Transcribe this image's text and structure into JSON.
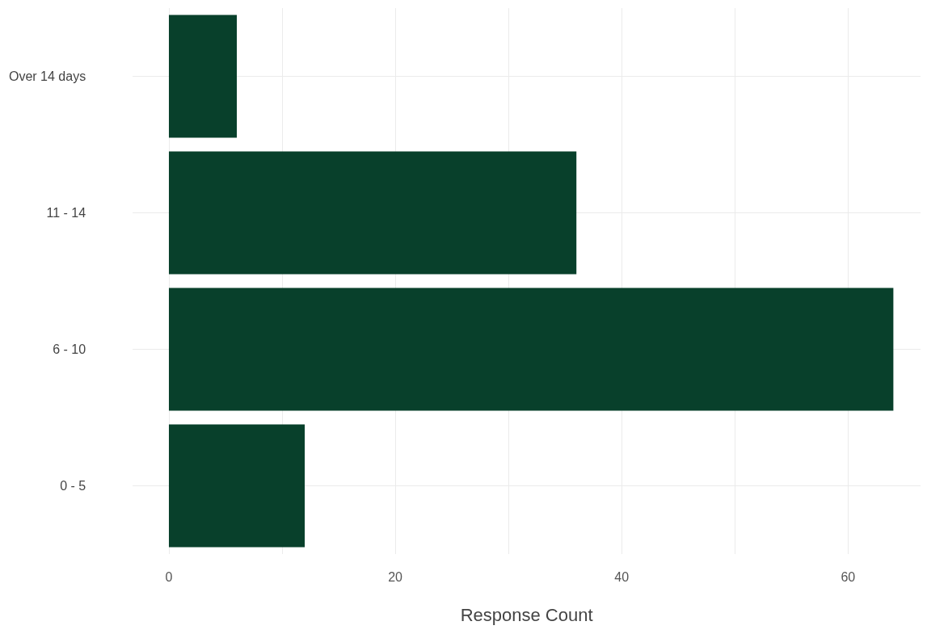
{
  "chart_data": {
    "type": "bar",
    "orientation": "horizontal",
    "xlabel": "Response Count",
    "categories": [
      "Over 14 days",
      "11 - 14",
      "6 - 10",
      "0 - 5"
    ],
    "values": [
      6,
      36,
      64,
      12
    ],
    "color": "#08402b",
    "xlim": [
      -3.2,
      66.4
    ],
    "xticks": [
      0,
      {
        "value": 10,
        "label": null
      },
      20,
      {
        "value": 30,
        "label": null
      },
      40,
      {
        "value": 50,
        "label": null
      },
      60
    ],
    "grid": true
  }
}
